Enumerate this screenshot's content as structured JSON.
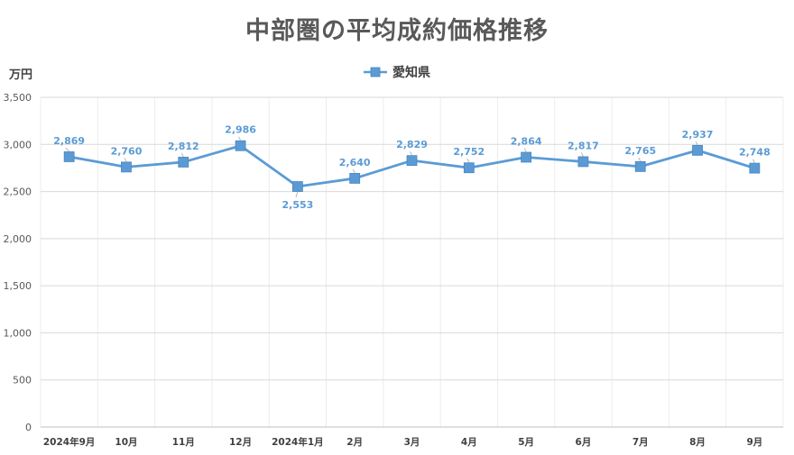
{
  "chart_data": {
    "type": "line",
    "title": "中部圏の平均成約価格推移",
    "ylabel": "万円",
    "ylim": [
      0,
      3500
    ],
    "y_ticks": [
      "0",
      "500",
      "1,000",
      "1,500",
      "2,000",
      "2,500",
      "3,000",
      "3,500"
    ],
    "y_tick_values": [
      0,
      500,
      1000,
      1500,
      2000,
      2500,
      3000,
      3500
    ],
    "categories": [
      "2024年9月",
      "10月",
      "11月",
      "12月",
      "2024年1月",
      "2月",
      "3月",
      "4月",
      "5月",
      "6月",
      "7月",
      "8月",
      "9月"
    ],
    "series": [
      {
        "name": "愛知県",
        "values": [
          2869,
          2760,
          2812,
          2986,
          2553,
          2640,
          2829,
          2752,
          2864,
          2817,
          2765,
          2937,
          2748
        ],
        "labels": [
          "2,869",
          "2,760",
          "2,812",
          "2,986",
          "2,553",
          "2,640",
          "2,829",
          "2,752",
          "2,864",
          "2,817",
          "2,765",
          "2,937",
          "2,748"
        ],
        "label_positions": [
          "above",
          "above",
          "above",
          "above",
          "below",
          "above",
          "above",
          "above",
          "above",
          "above",
          "above",
          "above",
          "above"
        ],
        "color": "#5b9bd5"
      }
    ],
    "grid": true,
    "legend": "top-center"
  }
}
